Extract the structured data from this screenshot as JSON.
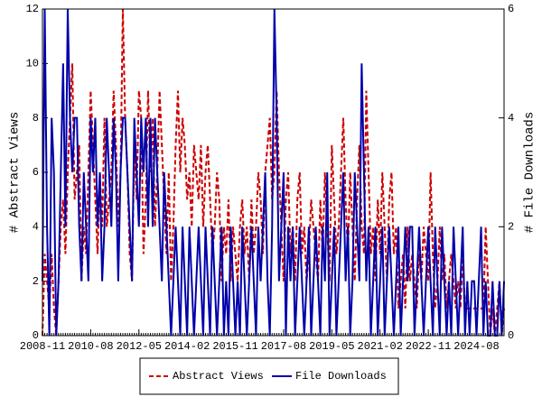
{
  "chart_data": {
    "type": "line",
    "ylabel": "# Abstract Views",
    "y2label": "# File Downloads",
    "x": [
      "2008-11",
      "2008-12",
      "2009-01",
      "2009-02",
      "2009-03",
      "2009-04",
      "2009-05",
      "2009-06",
      "2009-07",
      "2009-08",
      "2009-09",
      "2009-10",
      "2009-11",
      "2009-12",
      "2010-01",
      "2010-02",
      "2010-03",
      "2010-04",
      "2010-05",
      "2010-06",
      "2010-07",
      "2010-08",
      "2010-09",
      "2010-10",
      "2010-11",
      "2010-12",
      "2011-01",
      "2011-02",
      "2011-03",
      "2011-04",
      "2011-05",
      "2011-06",
      "2011-07",
      "2011-08",
      "2011-09",
      "2011-10",
      "2011-11",
      "2011-12",
      "2012-01",
      "2012-02",
      "2012-03",
      "2012-04",
      "2012-05",
      "2012-06",
      "2012-07",
      "2012-08",
      "2012-09",
      "2012-10",
      "2012-11",
      "2012-12",
      "2013-01",
      "2013-02",
      "2013-03",
      "2013-04",
      "2013-05",
      "2013-06",
      "2013-07",
      "2013-08",
      "2013-09",
      "2013-10",
      "2013-11",
      "2013-12",
      "2014-01",
      "2014-02",
      "2014-03",
      "2014-04",
      "2014-05",
      "2014-06",
      "2014-07",
      "2014-08",
      "2014-09",
      "2014-10",
      "2014-11",
      "2014-12",
      "2015-01",
      "2015-02",
      "2015-03",
      "2015-04",
      "2015-05",
      "2015-06",
      "2015-07",
      "2015-08",
      "2015-09",
      "2015-10",
      "2015-11",
      "2015-12",
      "2016-01",
      "2016-02",
      "2016-03",
      "2016-04",
      "2016-05",
      "2016-06",
      "2016-07",
      "2016-08",
      "2016-09",
      "2016-10",
      "2016-11",
      "2016-12",
      "2017-01",
      "2017-02",
      "2017-03",
      "2017-04",
      "2017-05",
      "2017-06",
      "2017-07",
      "2017-08",
      "2017-09",
      "2017-10",
      "2017-11",
      "2017-12",
      "2018-01",
      "2018-02",
      "2018-03",
      "2018-04",
      "2018-05",
      "2018-06",
      "2018-07",
      "2018-08",
      "2018-09",
      "2018-10",
      "2018-11",
      "2018-12",
      "2019-01",
      "2019-02",
      "2019-03",
      "2019-04",
      "2019-05",
      "2019-06",
      "2019-07",
      "2019-08",
      "2019-09",
      "2019-10",
      "2019-11",
      "2019-12",
      "2020-01",
      "2020-02",
      "2020-03",
      "2020-04",
      "2020-05",
      "2020-06",
      "2020-07",
      "2020-08",
      "2020-09",
      "2020-10",
      "2020-11",
      "2020-12",
      "2021-01",
      "2021-02",
      "2021-03",
      "2021-04",
      "2021-05",
      "2021-06",
      "2021-07",
      "2021-08",
      "2021-09",
      "2021-10",
      "2021-11",
      "2021-12",
      "2022-01",
      "2022-02",
      "2022-03",
      "2022-04",
      "2022-05",
      "2022-06",
      "2022-07",
      "2022-08",
      "2022-09",
      "2022-10",
      "2022-11",
      "2022-12",
      "2023-01",
      "2023-02",
      "2023-03",
      "2023-04",
      "2023-05",
      "2023-06",
      "2023-07",
      "2023-08",
      "2023-09",
      "2023-10",
      "2023-11",
      "2023-12",
      "2024-01",
      "2024-02",
      "2024-03",
      "2024-04",
      "2024-05",
      "2024-06",
      "2024-07",
      "2024-08",
      "2024-09",
      "2024-10",
      "2024-11",
      "2024-12",
      "2025-01",
      "2025-02",
      "2025-03",
      "2025-04",
      "2025-05",
      "2025-06",
      "2025-07",
      "2025-08"
    ],
    "xticks": [
      "2008-11",
      "2010-08",
      "2012-05",
      "2014-02",
      "2015-11",
      "2017-08",
      "2019-05",
      "2021-02",
      "2022-11",
      "2024-08"
    ],
    "ylim": [
      0,
      12
    ],
    "yticks": [
      0,
      2,
      4,
      6,
      8,
      10,
      12
    ],
    "y2lim": [
      0,
      6
    ],
    "y2ticks": [
      0,
      2,
      4,
      6
    ],
    "legend": "bottom",
    "series": [
      {
        "name": "Abstract Views",
        "color": "#cc0000",
        "dash": true,
        "values": [
          0,
          3,
          2,
          1,
          3,
          1,
          0,
          2,
          4,
          5,
          3,
          6,
          8,
          10,
          5,
          6,
          7,
          2,
          4,
          3,
          6,
          9,
          7,
          5,
          3,
          6,
          4,
          8,
          4,
          5,
          6,
          9,
          7,
          4,
          6,
          12,
          8,
          6,
          3,
          2,
          7,
          5,
          9,
          8,
          3,
          5,
          9,
          6,
          8,
          4,
          6,
          9,
          7,
          5,
          3,
          6,
          2,
          4,
          7,
          9,
          6,
          8,
          7,
          5,
          6,
          4,
          7,
          6,
          5,
          7,
          4,
          6,
          7,
          5,
          3,
          4,
          6,
          5,
          2,
          4,
          3,
          5,
          2,
          4,
          3,
          2,
          4,
          5,
          3,
          4,
          2,
          5,
          3,
          4,
          6,
          5,
          3,
          6,
          7,
          8,
          5,
          6,
          9,
          6,
          4,
          2,
          5,
          6,
          3,
          4,
          2,
          5,
          6,
          3,
          4,
          2,
          3,
          5,
          4,
          3,
          2,
          5,
          3,
          6,
          4,
          2,
          7,
          5,
          3,
          4,
          6,
          8,
          5,
          3,
          6,
          4,
          2,
          5,
          7,
          4,
          3,
          9,
          6,
          3,
          4,
          2,
          5,
          3,
          6,
          4,
          2,
          5,
          6,
          3,
          4,
          1,
          2,
          3,
          1,
          4,
          2,
          3,
          2,
          1,
          3,
          2,
          4,
          3,
          2,
          6,
          3,
          1,
          2,
          4,
          2,
          3,
          1,
          2,
          3,
          2,
          1,
          2,
          1,
          3,
          1,
          1,
          1,
          1,
          1,
          1,
          1,
          1,
          1,
          4,
          2,
          0,
          1,
          0,
          1,
          2,
          0,
          1
        ]
      },
      {
        "name": "File Downloads",
        "color": "#0000aa",
        "axis": "y2",
        "values": [
          1,
          6,
          2,
          0,
          4,
          3,
          0,
          1,
          3,
          5,
          2,
          6,
          4,
          3,
          4,
          4,
          2,
          1,
          3,
          2,
          1,
          4,
          3,
          4,
          2,
          3,
          1,
          2,
          4,
          3,
          2,
          4,
          3,
          1,
          3,
          4,
          4,
          3,
          2,
          1,
          4,
          3,
          2,
          4,
          3,
          4,
          2,
          4,
          2,
          4,
          3,
          2,
          1,
          3,
          2,
          1,
          0,
          1,
          2,
          1,
          0,
          2,
          1,
          0,
          2,
          1,
          0,
          1,
          2,
          1,
          0,
          2,
          1,
          0,
          2,
          1,
          0,
          1,
          2,
          0,
          1,
          0,
          2,
          1,
          0,
          1,
          0,
          2,
          1,
          0,
          1,
          2,
          1,
          0,
          2,
          1,
          2,
          3,
          1,
          0,
          2,
          6,
          4,
          1,
          2,
          3,
          0,
          2,
          1,
          2,
          0,
          1,
          2,
          1,
          0,
          1,
          2,
          0,
          1,
          2,
          1,
          0,
          2,
          1,
          3,
          0,
          1,
          2,
          0,
          1,
          2,
          3,
          1,
          2,
          0,
          1,
          3,
          2,
          1,
          5,
          3,
          1,
          2,
          0,
          1,
          2,
          0,
          1,
          2,
          0,
          1,
          2,
          1,
          0,
          1,
          2,
          0,
          1,
          2,
          1,
          2,
          2,
          0,
          1,
          2,
          1,
          0,
          1,
          2,
          1,
          0,
          2,
          1,
          0,
          2,
          1,
          0,
          1,
          0,
          2,
          1,
          0,
          1,
          2,
          0,
          1,
          0,
          1,
          1,
          0,
          1,
          2,
          0,
          1,
          0,
          0,
          1,
          0,
          0,
          1,
          0,
          1
        ]
      }
    ]
  }
}
